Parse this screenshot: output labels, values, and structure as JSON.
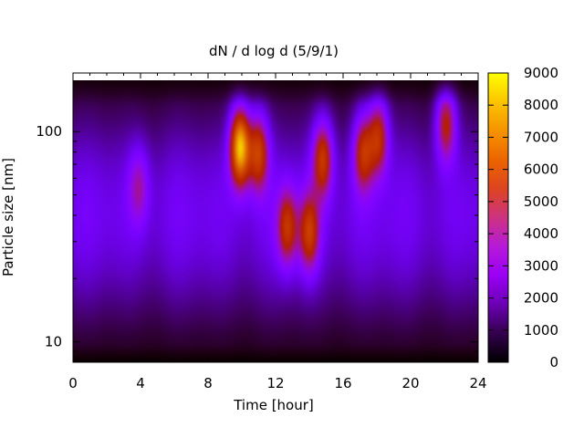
{
  "chart_data": {
    "type": "heatmap",
    "title": "dN / d log d (5/9/1)",
    "xlabel": "Time [hour]",
    "ylabel": "Particle size [nm]",
    "xlim": [
      0,
      24
    ],
    "ylim": [
      8,
      190
    ],
    "y_scale": "log",
    "x_ticks": [
      "0",
      "4",
      "8",
      "12",
      "16",
      "20",
      "24"
    ],
    "y_ticks": [
      "10",
      "100"
    ],
    "colorbar": {
      "range": [
        0,
        9000
      ],
      "ticks": [
        "0",
        "1000",
        "2000",
        "3000",
        "4000",
        "5000",
        "6000",
        "7000",
        "8000",
        "9000"
      ],
      "palette": "gnuplot pm3d black-purple-red-yellow"
    },
    "background_level": 1900,
    "peaks": [
      {
        "time": 9.9,
        "size": 85,
        "value": 8500
      },
      {
        "time": 11.0,
        "size": 80,
        "value": 5600
      },
      {
        "time": 12.7,
        "size": 35,
        "value": 4800
      },
      {
        "time": 14.0,
        "size": 33,
        "value": 5000
      },
      {
        "time": 14.8,
        "size": 75,
        "value": 5300
      },
      {
        "time": 17.2,
        "size": 80,
        "value": 5000
      },
      {
        "time": 18.1,
        "size": 95,
        "value": 5200
      },
      {
        "time": 22.1,
        "size": 110,
        "value": 5000
      },
      {
        "time": 3.9,
        "size": 55,
        "value": 3200
      }
    ]
  }
}
